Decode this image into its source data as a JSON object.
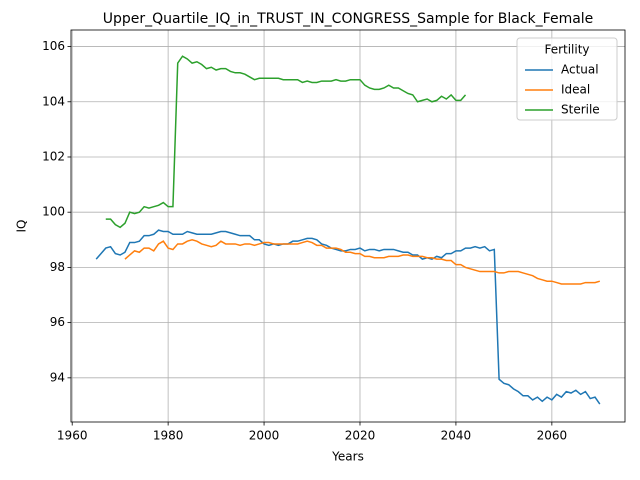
{
  "chart_data": {
    "type": "line",
    "title": "Upper_Quartile_IQ_in_TRUST_IN_CONGRESS_Sample for Black_Female",
    "xlabel": "Years",
    "ylabel": "IQ",
    "legend_title": "Fertility",
    "legend": "upper right",
    "grid": true,
    "xlim": [
      1959.75,
      2075.25
    ],
    "xticks": [
      1960,
      1980,
      2000,
      2020,
      2040,
      2060
    ],
    "ylim": [
      92.4,
      106.6
    ],
    "yticks": [
      94,
      96,
      98,
      100,
      102,
      104,
      106
    ],
    "x": [
      1965,
      1966,
      1967,
      1968,
      1969,
      1970,
      1971,
      1972,
      1973,
      1974,
      1975,
      1976,
      1977,
      1978,
      1979,
      1980,
      1981,
      1982,
      1983,
      1984,
      1985,
      1986,
      1987,
      1988,
      1989,
      1990,
      1991,
      1992,
      1993,
      1994,
      1995,
      1996,
      1997,
      1998,
      1999,
      2000,
      2001,
      2002,
      2003,
      2004,
      2005,
      2006,
      2007,
      2008,
      2009,
      2010,
      2011,
      2012,
      2013,
      2014,
      2015,
      2016,
      2017,
      2018,
      2019,
      2020,
      2021,
      2022,
      2023,
      2024,
      2025,
      2026,
      2027,
      2028,
      2029,
      2030,
      2031,
      2032,
      2033,
      2034,
      2035,
      2036,
      2037,
      2038,
      2039,
      2040,
      2041,
      2042,
      2043,
      2044,
      2045,
      2046,
      2047,
      2048,
      2049,
      2050,
      2051,
      2052,
      2053,
      2054,
      2055,
      2056,
      2057,
      2058,
      2059,
      2060,
      2061,
      2062,
      2063,
      2064,
      2065,
      2066,
      2067,
      2068,
      2069,
      2070
    ],
    "series": [
      {
        "name": "Actual",
        "color": "#1f77b4",
        "values": [
          98.3,
          98.5,
          98.7,
          98.75,
          98.5,
          98.45,
          98.55,
          98.9,
          98.9,
          98.95,
          99.15,
          99.15,
          99.2,
          99.35,
          99.3,
          99.3,
          99.2,
          99.2,
          99.2,
          99.3,
          99.25,
          99.2,
          99.2,
          99.2,
          99.2,
          99.25,
          99.3,
          99.3,
          99.25,
          99.2,
          99.15,
          99.15,
          99.15,
          99.0,
          99.0,
          98.85,
          98.8,
          98.85,
          98.8,
          98.85,
          98.85,
          98.95,
          98.95,
          99.0,
          99.05,
          99.05,
          99.0,
          98.85,
          98.8,
          98.7,
          98.65,
          98.6,
          98.6,
          98.65,
          98.65,
          98.7,
          98.6,
          98.65,
          98.65,
          98.6,
          98.65,
          98.65,
          98.65,
          98.6,
          98.55,
          98.55,
          98.45,
          98.45,
          98.3,
          98.35,
          98.3,
          98.4,
          98.35,
          98.5,
          98.5,
          98.6,
          98.6,
          98.7,
          98.7,
          98.75,
          98.7,
          98.75,
          98.6,
          98.65,
          93.95,
          93.8,
          93.75,
          93.6,
          93.5,
          93.35,
          93.35,
          93.2,
          93.3,
          93.15,
          93.3,
          93.2,
          93.4,
          93.3,
          93.5,
          93.45,
          93.55,
          93.4,
          93.5,
          93.25,
          93.3,
          93.05
        ]
      },
      {
        "name": "Ideal",
        "color": "#ff7f0e",
        "values": [
          null,
          null,
          null,
          null,
          null,
          null,
          98.3,
          98.45,
          98.6,
          98.55,
          98.7,
          98.7,
          98.6,
          98.85,
          98.95,
          98.7,
          98.65,
          98.85,
          98.85,
          98.95,
          99.0,
          98.95,
          98.85,
          98.8,
          98.75,
          98.8,
          98.95,
          98.85,
          98.85,
          98.85,
          98.8,
          98.85,
          98.85,
          98.8,
          98.85,
          98.9,
          98.9,
          98.85,
          98.85,
          98.85,
          98.85,
          98.85,
          98.85,
          98.9,
          98.95,
          98.9,
          98.8,
          98.8,
          98.7,
          98.7,
          98.7,
          98.65,
          98.55,
          98.55,
          98.5,
          98.5,
          98.4,
          98.4,
          98.35,
          98.35,
          98.35,
          98.4,
          98.4,
          98.4,
          98.45,
          98.45,
          98.4,
          98.4,
          98.4,
          98.35,
          98.35,
          98.3,
          98.3,
          98.25,
          98.25,
          98.1,
          98.1,
          98.0,
          97.95,
          97.9,
          97.85,
          97.85,
          97.85,
          97.85,
          97.8,
          97.8,
          97.85,
          97.85,
          97.85,
          97.8,
          97.75,
          97.7,
          97.6,
          97.55,
          97.5,
          97.5,
          97.45,
          97.4,
          97.4,
          97.4,
          97.4,
          97.4,
          97.45,
          97.45,
          97.45,
          97.5
        ]
      },
      {
        "name": "Sterile",
        "color": "#2ca02c",
        "values": [
          null,
          null,
          99.75,
          99.75,
          99.55,
          99.45,
          99.6,
          100.0,
          99.95,
          100.0,
          100.2,
          100.15,
          100.2,
          100.25,
          100.35,
          100.2,
          100.2,
          105.4,
          105.65,
          105.55,
          105.4,
          105.45,
          105.35,
          105.2,
          105.25,
          105.15,
          105.2,
          105.2,
          105.1,
          105.05,
          105.05,
          105.0,
          104.9,
          104.8,
          104.85,
          104.85,
          104.85,
          104.85,
          104.85,
          104.8,
          104.8,
          104.8,
          104.8,
          104.7,
          104.75,
          104.7,
          104.7,
          104.75,
          104.75,
          104.75,
          104.8,
          104.75,
          104.75,
          104.8,
          104.8,
          104.8,
          104.6,
          104.5,
          104.45,
          104.45,
          104.5,
          104.6,
          104.5,
          104.5,
          104.4,
          104.3,
          104.25,
          104.0,
          104.05,
          104.1,
          104.0,
          104.05,
          104.2,
          104.1,
          104.25,
          104.05,
          104.05,
          104.25,
          null,
          null,
          null,
          null,
          null,
          null,
          null,
          null,
          null,
          null,
          null,
          null,
          null,
          null,
          null,
          null,
          null,
          null,
          null,
          null,
          null,
          null,
          null,
          null,
          null,
          null,
          null,
          null
        ]
      }
    ]
  }
}
